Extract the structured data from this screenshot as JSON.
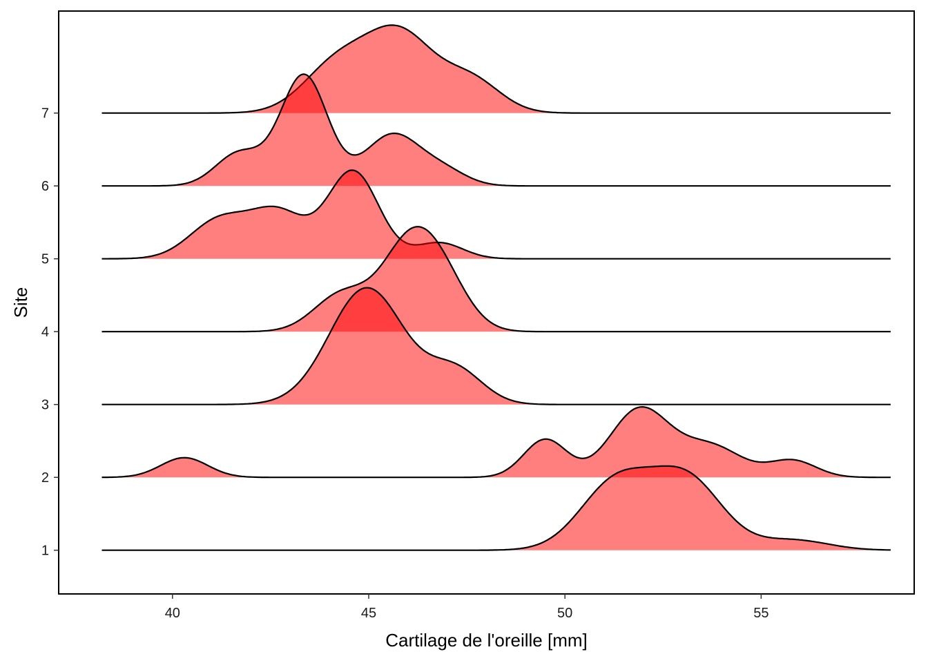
{
  "chart_data": {
    "type": "ridgeline",
    "xlabel": "Cartilage de l'oreille  [mm]",
    "ylabel": "Site",
    "xlim": [
      37.1,
      58.9
    ],
    "ylim": [
      0.4,
      8.4
    ],
    "x_ticks": [
      40,
      45,
      50,
      55
    ],
    "y_ticks": [
      1,
      2,
      3,
      4,
      5,
      6,
      7
    ],
    "x_range": [
      38.2,
      58.3
    ],
    "fill_color": "#ff0000",
    "fill_opacity": 0.5,
    "line_color": "#000000",
    "grid": false,
    "legend": "none",
    "series": [
      {
        "site": 1,
        "peaks": [
          {
            "mu": 51.3,
            "sigma": 0.9,
            "amp": 0.92
          },
          {
            "mu": 53.1,
            "sigma": 0.9,
            "amp": 0.97
          },
          {
            "mu": 55.8,
            "sigma": 0.9,
            "amp": 0.14
          }
        ]
      },
      {
        "site": 2,
        "peaks": [
          {
            "mu": 40.3,
            "sigma": 0.6,
            "amp": 0.27
          },
          {
            "mu": 49.5,
            "sigma": 0.55,
            "amp": 0.52
          },
          {
            "mu": 51.9,
            "sigma": 0.75,
            "amp": 0.93
          },
          {
            "mu": 53.7,
            "sigma": 0.8,
            "amp": 0.43
          },
          {
            "mu": 55.8,
            "sigma": 0.6,
            "amp": 0.23
          }
        ]
      },
      {
        "site": 3,
        "peaks": [
          {
            "mu": 44.95,
            "sigma": 0.95,
            "amp": 1.6
          },
          {
            "mu": 47.2,
            "sigma": 0.7,
            "amp": 0.47
          }
        ]
      },
      {
        "site": 4,
        "peaks": [
          {
            "mu": 44.3,
            "sigma": 0.7,
            "amp": 0.5
          },
          {
            "mu": 46.1,
            "sigma": 0.75,
            "amp": 1.25
          },
          {
            "mu": 47.0,
            "sigma": 0.65,
            "amp": 0.4
          }
        ]
      },
      {
        "site": 5,
        "peaks": [
          {
            "mu": 41.2,
            "sigma": 0.75,
            "amp": 0.53
          },
          {
            "mu": 42.7,
            "sigma": 0.7,
            "amp": 0.62
          },
          {
            "mu": 44.6,
            "sigma": 0.65,
            "amp": 1.2
          },
          {
            "mu": 46.8,
            "sigma": 0.6,
            "amp": 0.22
          }
        ]
      },
      {
        "site": 6,
        "peaks": [
          {
            "mu": 41.7,
            "sigma": 0.6,
            "amp": 0.45
          },
          {
            "mu": 43.35,
            "sigma": 0.6,
            "amp": 1.52
          },
          {
            "mu": 45.6,
            "sigma": 0.7,
            "amp": 0.7
          },
          {
            "mu": 46.9,
            "sigma": 0.6,
            "amp": 0.2
          }
        ]
      },
      {
        "site": 7,
        "peaks": [
          {
            "mu": 44.2,
            "sigma": 0.85,
            "amp": 0.67
          },
          {
            "mu": 45.8,
            "sigma": 0.85,
            "amp": 1.05
          },
          {
            "mu": 47.6,
            "sigma": 0.75,
            "amp": 0.45
          }
        ]
      }
    ]
  }
}
